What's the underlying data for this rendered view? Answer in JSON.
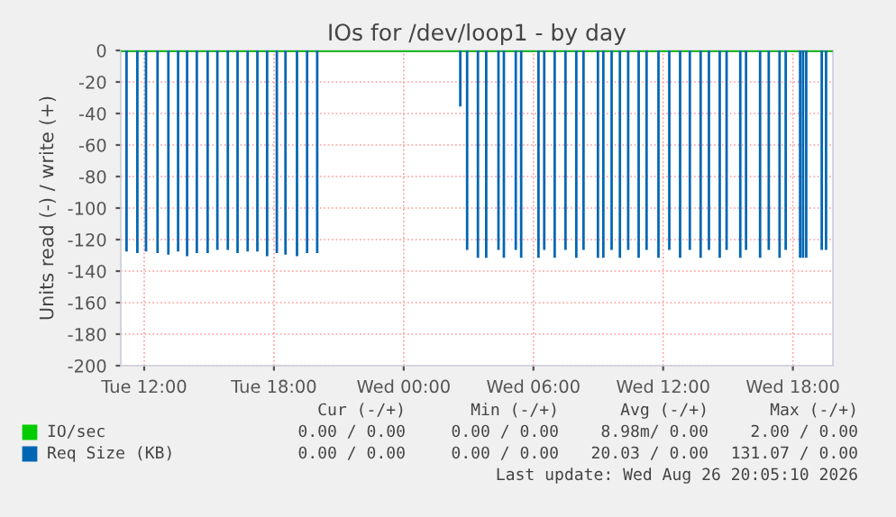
{
  "chart_data": {
    "type": "line",
    "title": "IOs for /dev/loop1 - by day",
    "ylabel": "Units read (-) / write (+)",
    "xlim": [
      "2026-08-25T10:55",
      "2026-08-26T19:51"
    ],
    "xticks": [
      {
        "value": "2026-08-25T12:00",
        "label": "Tue 12:00"
      },
      {
        "value": "2026-08-25T18:00",
        "label": "Tue 18:00"
      },
      {
        "value": "2026-08-26T00:00",
        "label": "Wed 00:00"
      },
      {
        "value": "2026-08-26T06:00",
        "label": "Wed 06:00"
      },
      {
        "value": "2026-08-26T12:00",
        "label": "Wed 12:00"
      },
      {
        "value": "2026-08-26T18:00",
        "label": "Wed 18:00"
      }
    ],
    "ylim": [
      -200,
      0
    ],
    "yticks": [
      -200,
      -180,
      -160,
      -140,
      -120,
      -100,
      -80,
      -60,
      -40,
      -20,
      0
    ],
    "grid": true,
    "legend": "bottom",
    "ref_lines": [
      {
        "axis": "y",
        "value": 0,
        "color": "#000000"
      }
    ],
    "series": [
      {
        "name": "IO/sec",
        "color": "#00cc00",
        "x": [
          "2026-08-25T10:55",
          "2026-08-26T19:51"
        ],
        "values": [
          0,
          0
        ]
      },
      {
        "name": "Req Size (KB)",
        "type": "bar",
        "color": "#0066b3",
        "x": [
          "2026-08-25T11:11",
          "2026-08-25T11:41",
          "2026-08-25T12:05",
          "2026-08-25T12:37",
          "2026-08-25T13:07",
          "2026-08-25T13:34",
          "2026-08-25T13:59",
          "2026-08-25T14:26",
          "2026-08-25T14:56",
          "2026-08-25T15:23",
          "2026-08-25T15:52",
          "2026-08-25T16:19",
          "2026-08-25T16:47",
          "2026-08-25T17:14",
          "2026-08-25T17:41",
          "2026-08-25T18:08",
          "2026-08-25T18:32",
          "2026-08-25T19:04",
          "2026-08-25T19:32",
          "2026-08-25T20:00",
          "2026-08-26T02:37",
          "2026-08-26T02:56",
          "2026-08-26T03:26",
          "2026-08-26T03:49",
          "2026-08-26T04:23",
          "2026-08-26T04:38",
          "2026-08-26T05:11",
          "2026-08-26T05:26",
          "2026-08-26T06:14",
          "2026-08-26T06:30",
          "2026-08-26T06:59",
          "2026-08-26T07:29",
          "2026-08-26T07:59",
          "2026-08-26T08:19",
          "2026-08-26T08:59",
          "2026-08-26T09:14",
          "2026-08-26T09:37",
          "2026-08-26T10:00",
          "2026-08-26T10:23",
          "2026-08-26T10:52",
          "2026-08-26T11:14",
          "2026-08-26T11:47",
          "2026-08-26T12:17",
          "2026-08-26T12:47",
          "2026-08-26T13:14",
          "2026-08-26T13:44",
          "2026-08-26T14:07",
          "2026-08-26T14:37",
          "2026-08-26T14:56",
          "2026-08-26T15:34",
          "2026-08-26T15:50",
          "2026-08-26T16:29",
          "2026-08-26T16:53",
          "2026-08-26T17:23",
          "2026-08-26T17:40",
          "2026-08-26T18:20",
          "2026-08-26T18:28",
          "2026-08-26T18:37",
          "2026-08-26T19:20",
          "2026-08-26T19:32"
        ],
        "values": [
          -127,
          -128,
          -127,
          -128,
          -129,
          -127,
          -130,
          -128,
          -128,
          -126,
          -126,
          -128,
          -127,
          -127,
          -130,
          -128,
          -129,
          -130,
          -128,
          -128,
          -35,
          -126,
          -131,
          -131,
          -126,
          -131,
          -126,
          -131,
          -131,
          -126,
          -131,
          -126,
          -131,
          -126,
          -131,
          -131,
          -126,
          -131,
          -126,
          -131,
          -126,
          -131,
          -126,
          -131,
          -126,
          -131,
          -126,
          -131,
          -126,
          -131,
          -126,
          -131,
          -126,
          -131,
          -126,
          -131,
          -131,
          -131,
          -126,
          -126
        ]
      }
    ],
    "annotations": [
      "Cur (-/+)",
      "Min (-/+)",
      "Avg (-/+)",
      "Max (-/+)",
      "0.00 / 0.00",
      "0.00 / 0.00",
      "8.98m/ 0.00",
      "2.00 / 0.00",
      "0.00 / 0.00",
      "0.00 / 0.00",
      "20.03 / 0.00",
      "131.07 / 0.00",
      "Last update: Wed Aug 26 20:05:10 2026"
    ]
  }
}
